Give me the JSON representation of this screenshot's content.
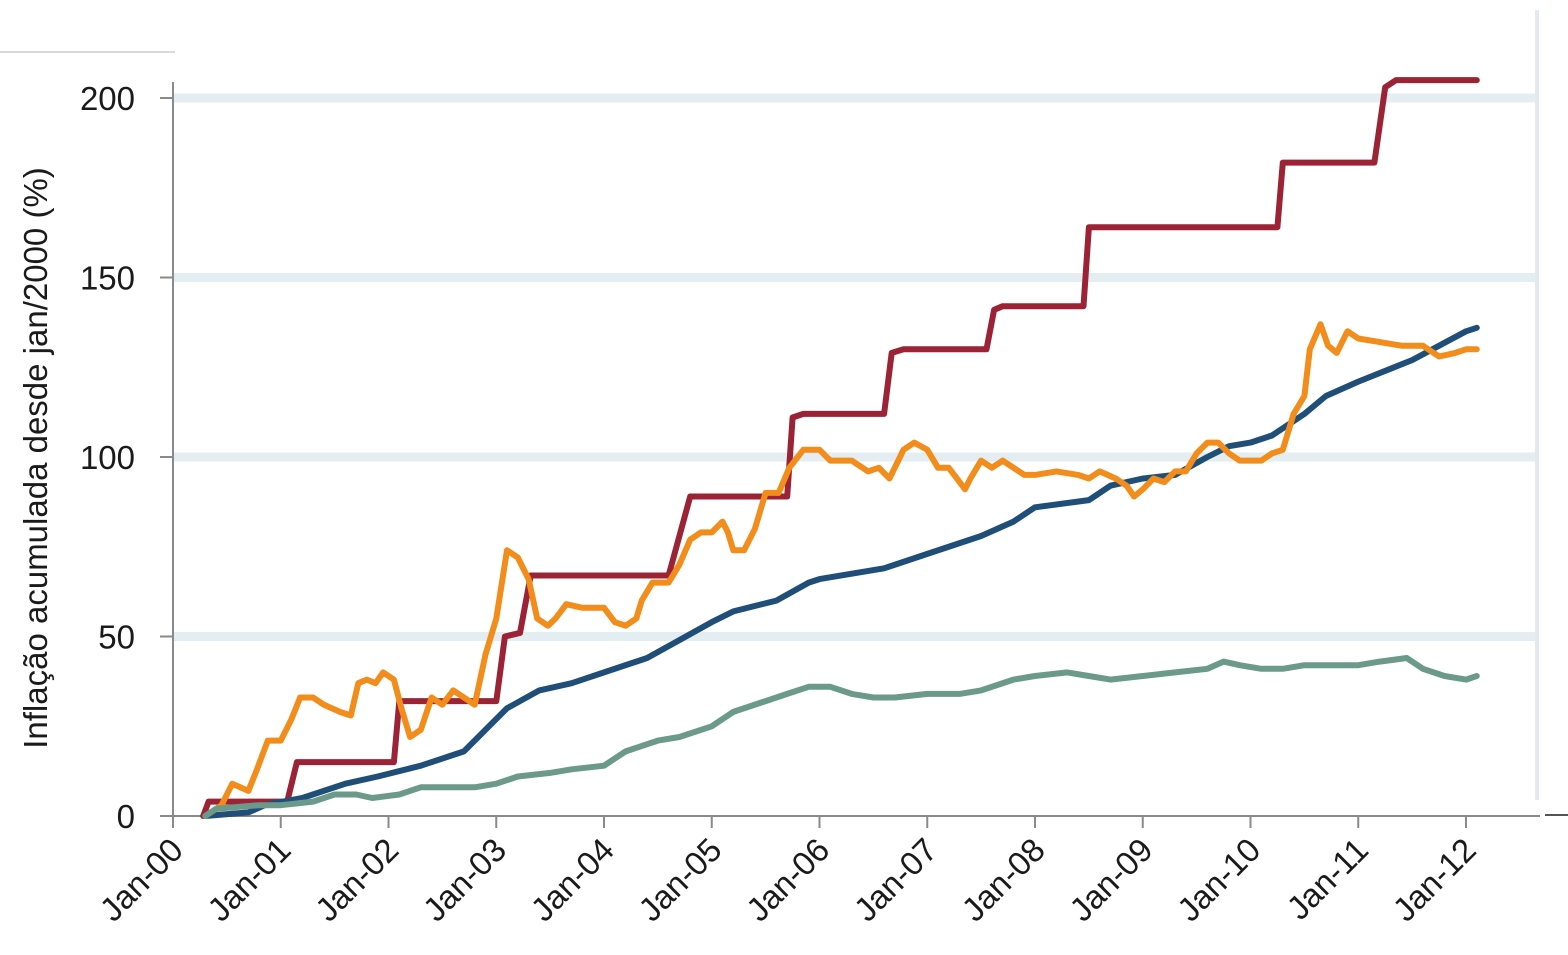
{
  "chart_data": {
    "type": "line",
    "title": "",
    "xlabel": "",
    "ylabel": "Inflação acumulada desde jan/2000 (%)",
    "ylim": [
      0,
      200
    ],
    "yticks": [
      0,
      50,
      100,
      150,
      200
    ],
    "xlim": [
      0,
      12
    ],
    "xtick_labels": [
      "Jan-00",
      "Jan-01",
      "Jan-02",
      "Jan-03",
      "Jan-04",
      "Jan-05",
      "Jan-06",
      "Jan-07",
      "Jan-08",
      "Jan-09",
      "Jan-10",
      "Jan-11",
      "Jan-12"
    ],
    "grid": "horizontal",
    "legend": "none",
    "x_unit": "years since Jan-00",
    "series": [
      {
        "color": "#9b2335",
        "points": [
          [
            0.28,
            0
          ],
          [
            0.33,
            4
          ],
          [
            1.06,
            4
          ],
          [
            1.15,
            15
          ],
          [
            2.05,
            15
          ],
          [
            2.1,
            32
          ],
          [
            3.0,
            32
          ],
          [
            3.08,
            50
          ],
          [
            3.22,
            51
          ],
          [
            3.32,
            67
          ],
          [
            4.6,
            67
          ],
          [
            4.8,
            89
          ],
          [
            5.7,
            89
          ],
          [
            5.75,
            111
          ],
          [
            5.85,
            112
          ],
          [
            6.6,
            112
          ],
          [
            6.67,
            129
          ],
          [
            6.78,
            130
          ],
          [
            7.55,
            130
          ],
          [
            7.62,
            141
          ],
          [
            7.7,
            142
          ],
          [
            8.45,
            142
          ],
          [
            8.5,
            164
          ],
          [
            10.25,
            164
          ],
          [
            10.3,
            182
          ],
          [
            11.15,
            182
          ],
          [
            11.25,
            203
          ],
          [
            11.35,
            205
          ],
          [
            12.1,
            205
          ]
        ]
      },
      {
        "color": "#1f4e79",
        "points": [
          [
            0.3,
            0
          ],
          [
            0.7,
            1
          ],
          [
            0.85,
            3
          ],
          [
            1.2,
            5
          ],
          [
            1.6,
            9
          ],
          [
            1.9,
            11
          ],
          [
            2.3,
            14
          ],
          [
            2.7,
            18
          ],
          [
            2.9,
            24
          ],
          [
            3.1,
            30
          ],
          [
            3.4,
            35
          ],
          [
            3.7,
            37
          ],
          [
            4.0,
            40
          ],
          [
            4.4,
            44
          ],
          [
            4.7,
            49
          ],
          [
            5.0,
            54
          ],
          [
            5.2,
            57
          ],
          [
            5.6,
            60
          ],
          [
            5.9,
            65
          ],
          [
            6.0,
            66
          ],
          [
            6.6,
            69
          ],
          [
            7.0,
            73
          ],
          [
            7.5,
            78
          ],
          [
            7.8,
            82
          ],
          [
            8.0,
            86
          ],
          [
            8.5,
            88
          ],
          [
            8.7,
            92
          ],
          [
            9.0,
            94
          ],
          [
            9.3,
            95
          ],
          [
            9.6,
            100
          ],
          [
            9.8,
            103
          ],
          [
            10.0,
            104
          ],
          [
            10.2,
            106
          ],
          [
            10.5,
            112
          ],
          [
            10.7,
            117
          ],
          [
            11.0,
            121
          ],
          [
            11.5,
            127
          ],
          [
            12.0,
            135
          ],
          [
            12.1,
            136
          ]
        ]
      },
      {
        "color": "#f28c1a",
        "points": [
          [
            0.3,
            0
          ],
          [
            0.45,
            3
          ],
          [
            0.55,
            9
          ],
          [
            0.7,
            7
          ],
          [
            0.78,
            13
          ],
          [
            0.88,
            21
          ],
          [
            1.0,
            21
          ],
          [
            1.1,
            27
          ],
          [
            1.18,
            33
          ],
          [
            1.3,
            33
          ],
          [
            1.4,
            31
          ],
          [
            1.55,
            29
          ],
          [
            1.65,
            28
          ],
          [
            1.72,
            37
          ],
          [
            1.8,
            38
          ],
          [
            1.88,
            37
          ],
          [
            1.95,
            40
          ],
          [
            2.05,
            38
          ],
          [
            2.12,
            30
          ],
          [
            2.2,
            22
          ],
          [
            2.3,
            24
          ],
          [
            2.4,
            33
          ],
          [
            2.5,
            31
          ],
          [
            2.6,
            35
          ],
          [
            2.7,
            33
          ],
          [
            2.8,
            31
          ],
          [
            2.9,
            45
          ],
          [
            3.0,
            55
          ],
          [
            3.1,
            74
          ],
          [
            3.2,
            72
          ],
          [
            3.3,
            66
          ],
          [
            3.38,
            55
          ],
          [
            3.48,
            53
          ],
          [
            3.55,
            55
          ],
          [
            3.65,
            59
          ],
          [
            3.8,
            58
          ],
          [
            4.0,
            58
          ],
          [
            4.1,
            54
          ],
          [
            4.2,
            53
          ],
          [
            4.3,
            55
          ],
          [
            4.35,
            60
          ],
          [
            4.45,
            65
          ],
          [
            4.6,
            65
          ],
          [
            4.7,
            70
          ],
          [
            4.8,
            77
          ],
          [
            4.9,
            79
          ],
          [
            5.0,
            79
          ],
          [
            5.1,
            82
          ],
          [
            5.15,
            79
          ],
          [
            5.2,
            74
          ],
          [
            5.3,
            74
          ],
          [
            5.4,
            80
          ],
          [
            5.5,
            90
          ],
          [
            5.62,
            90
          ],
          [
            5.72,
            97
          ],
          [
            5.85,
            102
          ],
          [
            6.0,
            102
          ],
          [
            6.1,
            99
          ],
          [
            6.3,
            99
          ],
          [
            6.45,
            96
          ],
          [
            6.55,
            97
          ],
          [
            6.65,
            94
          ],
          [
            6.78,
            102
          ],
          [
            6.88,
            104
          ],
          [
            7.0,
            102
          ],
          [
            7.1,
            97
          ],
          [
            7.2,
            97
          ],
          [
            7.3,
            93
          ],
          [
            7.35,
            91
          ],
          [
            7.4,
            94
          ],
          [
            7.5,
            99
          ],
          [
            7.6,
            97
          ],
          [
            7.7,
            99
          ],
          [
            7.8,
            97
          ],
          [
            7.9,
            95
          ],
          [
            8.0,
            95
          ],
          [
            8.2,
            96
          ],
          [
            8.4,
            95
          ],
          [
            8.5,
            94
          ],
          [
            8.6,
            96
          ],
          [
            8.75,
            94
          ],
          [
            8.85,
            92
          ],
          [
            8.92,
            89
          ],
          [
            9.0,
            91
          ],
          [
            9.1,
            94
          ],
          [
            9.2,
            93
          ],
          [
            9.3,
            96
          ],
          [
            9.4,
            96
          ],
          [
            9.5,
            101
          ],
          [
            9.6,
            104
          ],
          [
            9.7,
            104
          ],
          [
            9.8,
            101
          ],
          [
            9.9,
            99
          ],
          [
            10.0,
            99
          ],
          [
            10.1,
            99
          ],
          [
            10.2,
            101
          ],
          [
            10.3,
            102
          ],
          [
            10.4,
            112
          ],
          [
            10.5,
            117
          ],
          [
            10.55,
            130
          ],
          [
            10.65,
            137
          ],
          [
            10.72,
            131
          ],
          [
            10.8,
            129
          ],
          [
            10.9,
            135
          ],
          [
            11.0,
            133
          ],
          [
            11.2,
            132
          ],
          [
            11.4,
            131
          ],
          [
            11.6,
            131
          ],
          [
            11.75,
            128
          ],
          [
            11.9,
            129
          ],
          [
            12.0,
            130
          ],
          [
            12.1,
            130
          ]
        ]
      },
      {
        "color": "#6b9a8a",
        "points": [
          [
            0.3,
            0
          ],
          [
            0.4,
            2
          ],
          [
            0.8,
            3
          ],
          [
            1.0,
            3
          ],
          [
            1.3,
            4
          ],
          [
            1.5,
            6
          ],
          [
            1.7,
            6
          ],
          [
            1.85,
            5
          ],
          [
            2.1,
            6
          ],
          [
            2.3,
            8
          ],
          [
            2.5,
            8
          ],
          [
            2.8,
            8
          ],
          [
            3.0,
            9
          ],
          [
            3.2,
            11
          ],
          [
            3.5,
            12
          ],
          [
            3.7,
            13
          ],
          [
            4.0,
            14
          ],
          [
            4.2,
            18
          ],
          [
            4.5,
            21
          ],
          [
            4.7,
            22
          ],
          [
            5.0,
            25
          ],
          [
            5.2,
            29
          ],
          [
            5.5,
            32
          ],
          [
            5.7,
            34
          ],
          [
            5.9,
            36
          ],
          [
            6.1,
            36
          ],
          [
            6.3,
            34
          ],
          [
            6.5,
            33
          ],
          [
            6.7,
            33
          ],
          [
            7.0,
            34
          ],
          [
            7.3,
            34
          ],
          [
            7.5,
            35
          ],
          [
            7.8,
            38
          ],
          [
            8.0,
            39
          ],
          [
            8.3,
            40
          ],
          [
            8.5,
            39
          ],
          [
            8.7,
            38
          ],
          [
            9.0,
            39
          ],
          [
            9.3,
            40
          ],
          [
            9.6,
            41
          ],
          [
            9.75,
            43
          ],
          [
            9.9,
            42
          ],
          [
            10.1,
            41
          ],
          [
            10.3,
            41
          ],
          [
            10.5,
            42
          ],
          [
            10.8,
            42
          ],
          [
            11.0,
            42
          ],
          [
            11.2,
            43
          ],
          [
            11.45,
            44
          ],
          [
            11.6,
            41
          ],
          [
            11.8,
            39
          ],
          [
            12.0,
            38
          ],
          [
            12.1,
            39
          ]
        ]
      }
    ]
  }
}
